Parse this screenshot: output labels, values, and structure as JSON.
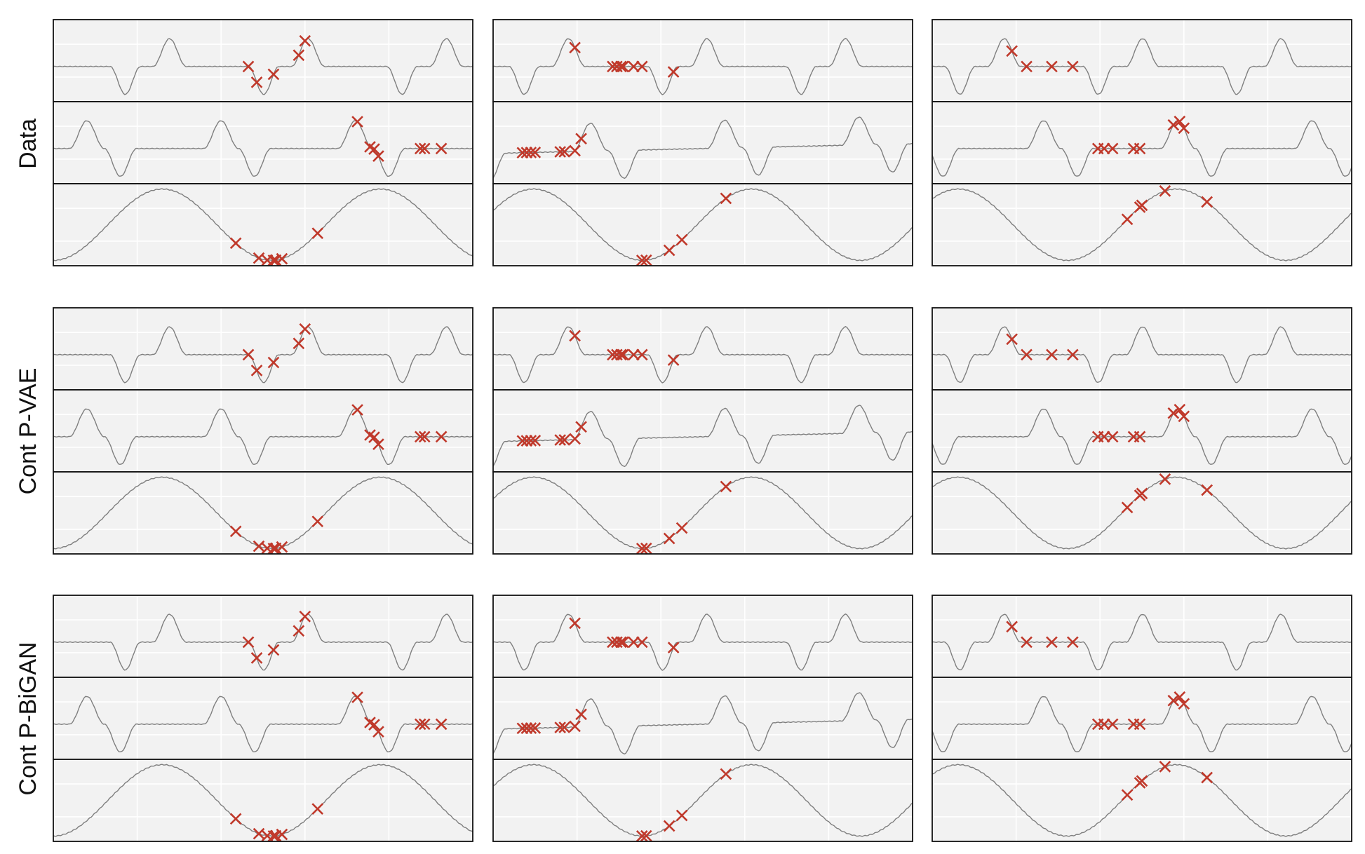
{
  "figure": {
    "row_labels": [
      "Data",
      "Cont P-VAE",
      "Cont P-BiGAN"
    ],
    "colors": {
      "panel_background": "#f2f2f2",
      "grid": "#ffffff",
      "frame": "#111111",
      "curve": "#7f7f7f",
      "observation_marker": "#c0392b"
    },
    "marker_style": "x"
  },
  "chart_data": [
    {
      "type": "line",
      "group": "Data",
      "column": 1,
      "xlim": [
        0,
        100
      ],
      "grid": true,
      "xticks": [
        20,
        40,
        60,
        80
      ],
      "yticks": [
        0.3,
        0.7
      ],
      "series": [
        {
          "track": 1,
          "family": "sharp",
          "phase": 0.34,
          "trend": 0,
          "ylim": [
            -1.2,
            1.6
          ],
          "observed_x": [
            46.5,
            48.5,
            52.5,
            58.5,
            60.0
          ]
        },
        {
          "track": 2,
          "family": "mid",
          "phase": 0.75,
          "trend": 0,
          "ylim": [
            -1.2,
            1.6
          ],
          "observed_x": [
            72.5,
            75.5,
            76.5,
            77.5,
            87.5,
            88.5,
            92.5
          ]
        },
        {
          "track": 3,
          "family": "slow",
          "phase": 0.5,
          "trend": 0,
          "ylim": [
            -1.15,
            1.15
          ],
          "observed_x": [
            43.5,
            49.0,
            51.0,
            52.5,
            53.0,
            54.5,
            63.0
          ]
        }
      ]
    },
    {
      "type": "line",
      "group": "Data",
      "column": 2,
      "xlim": [
        0,
        100
      ],
      "grid": true,
      "xticks": [
        20,
        40,
        60,
        80
      ],
      "yticks": [
        0.3,
        0.7
      ],
      "series": [
        {
          "track": 1,
          "family": "sharp",
          "phase": 0.045,
          "trend": 0,
          "ylim": [
            -1.2,
            1.6
          ],
          "observed_x": [
            19.5,
            28.5,
            29.5,
            30.5,
            31.0,
            33.5,
            35.5,
            43.0
          ]
        },
        {
          "track": 2,
          "family": "mid",
          "phase": 0.225,
          "trend": 0.55,
          "ylim": [
            -1.2,
            1.6
          ],
          "observed_x": [
            7.0,
            8.0,
            9.0,
            10.0,
            16.0,
            17.0,
            19.5,
            21.0
          ]
        },
        {
          "track": 3,
          "family": "slow",
          "phase": 0.185,
          "trend": 0,
          "ylim": [
            -1.15,
            1.15
          ],
          "observed_x": [
            35.5,
            36.5,
            42.0,
            45.0,
            55.5
          ]
        }
      ]
    },
    {
      "type": "line",
      "group": "Data",
      "column": 3,
      "xlim": [
        0,
        100
      ],
      "grid": true,
      "xticks": [
        20,
        40,
        60,
        80
      ],
      "yticks": [
        0.3,
        0.7
      ],
      "series": [
        {
          "track": 1,
          "family": "sharp",
          "phase": 0.02,
          "trend": 0,
          "ylim": [
            -1.2,
            1.6
          ],
          "observed_x": [
            19.0,
            22.5,
            28.5,
            33.5
          ]
        },
        {
          "track": 2,
          "family": "mid",
          "phase": 0.33,
          "trend": 0,
          "ylim": [
            -1.2,
            1.6
          ],
          "observed_x": [
            39.5,
            41.0,
            43.0,
            48.0,
            49.5,
            57.5,
            59.0,
            60.0
          ]
        },
        {
          "track": 3,
          "family": "slow",
          "phase": 0.12,
          "trend": 0,
          "ylim": [
            -1.15,
            1.15
          ],
          "observed_x": [
            46.5,
            49.5,
            50.0,
            55.5,
            65.5
          ]
        }
      ]
    },
    {
      "type": "line",
      "group": "Cont P-VAE",
      "column": 1,
      "xlim": [
        0,
        100
      ],
      "grid": true,
      "xticks": [
        20,
        40,
        60,
        80
      ],
      "yticks": [
        0.3,
        0.7
      ],
      "series": [
        {
          "track": 1,
          "family": "sharp",
          "phase": 0.34,
          "trend": 0,
          "ylim": [
            -1.2,
            1.6
          ],
          "observed_x": [
            46.5,
            48.5,
            52.5,
            58.5,
            60.0
          ]
        },
        {
          "track": 2,
          "family": "mid",
          "phase": 0.75,
          "trend": 0,
          "ylim": [
            -1.2,
            1.6
          ],
          "observed_x": [
            72.5,
            75.5,
            76.5,
            77.5,
            87.5,
            88.5,
            92.5
          ]
        },
        {
          "track": 3,
          "family": "slow",
          "phase": 0.5,
          "trend": 0,
          "ylim": [
            -1.15,
            1.15
          ],
          "observed_x": [
            43.5,
            49.0,
            51.0,
            52.5,
            53.0,
            54.5,
            63.0
          ]
        }
      ]
    },
    {
      "type": "line",
      "group": "Cont P-VAE",
      "column": 2,
      "xlim": [
        0,
        100
      ],
      "grid": true,
      "xticks": [
        20,
        40,
        60,
        80
      ],
      "yticks": [
        0.3,
        0.7
      ],
      "series": [
        {
          "track": 1,
          "family": "sharp",
          "phase": 0.045,
          "trend": 0,
          "ylim": [
            -1.2,
            1.6
          ],
          "observed_x": [
            19.5,
            28.5,
            29.5,
            30.5,
            31.0,
            33.5,
            35.5,
            43.0
          ]
        },
        {
          "track": 2,
          "family": "mid",
          "phase": 0.225,
          "trend": 0.55,
          "ylim": [
            -1.2,
            1.6
          ],
          "observed_x": [
            7.0,
            8.0,
            9.0,
            10.0,
            16.0,
            17.0,
            19.5,
            21.0
          ]
        },
        {
          "track": 3,
          "family": "slow",
          "phase": 0.185,
          "trend": 0,
          "ylim": [
            -1.15,
            1.15
          ],
          "observed_x": [
            35.5,
            36.5,
            42.0,
            45.0,
            55.5
          ]
        }
      ]
    },
    {
      "type": "line",
      "group": "Cont P-VAE",
      "column": 3,
      "xlim": [
        0,
        100
      ],
      "grid": true,
      "xticks": [
        20,
        40,
        60,
        80
      ],
      "yticks": [
        0.3,
        0.7
      ],
      "series": [
        {
          "track": 1,
          "family": "sharp",
          "phase": 0.02,
          "trend": 0,
          "ylim": [
            -1.2,
            1.6
          ],
          "observed_x": [
            19.0,
            22.5,
            28.5,
            33.5
          ]
        },
        {
          "track": 2,
          "family": "mid",
          "phase": 0.33,
          "trend": 0,
          "ylim": [
            -1.2,
            1.6
          ],
          "observed_x": [
            39.5,
            41.0,
            43.0,
            48.0,
            49.5,
            57.5,
            59.0,
            60.0
          ]
        },
        {
          "track": 3,
          "family": "slow",
          "phase": 0.12,
          "trend": 0,
          "ylim": [
            -1.15,
            1.15
          ],
          "observed_x": [
            46.5,
            49.5,
            50.0,
            55.5,
            65.5
          ]
        }
      ]
    },
    {
      "type": "line",
      "group": "Cont P-BiGAN",
      "column": 1,
      "xlim": [
        0,
        100
      ],
      "grid": true,
      "xticks": [
        20,
        40,
        60,
        80
      ],
      "yticks": [
        0.3,
        0.7
      ],
      "series": [
        {
          "track": 1,
          "family": "sharp",
          "phase": 0.34,
          "trend": 0,
          "ylim": [
            -1.2,
            1.6
          ],
          "observed_x": [
            46.5,
            48.5,
            52.5,
            58.5,
            60.0
          ]
        },
        {
          "track": 2,
          "family": "mid",
          "phase": 0.75,
          "trend": 0,
          "ylim": [
            -1.2,
            1.6
          ],
          "observed_x": [
            72.5,
            75.5,
            76.5,
            77.5,
            87.5,
            88.5,
            92.5
          ]
        },
        {
          "track": 3,
          "family": "slow",
          "phase": 0.5,
          "trend": 0,
          "ylim": [
            -1.15,
            1.15
          ],
          "observed_x": [
            43.5,
            49.0,
            51.0,
            52.5,
            53.0,
            54.5,
            63.0
          ]
        }
      ]
    },
    {
      "type": "line",
      "group": "Cont P-BiGAN",
      "column": 2,
      "xlim": [
        0,
        100
      ],
      "grid": true,
      "xticks": [
        20,
        40,
        60,
        80
      ],
      "yticks": [
        0.3,
        0.7
      ],
      "series": [
        {
          "track": 1,
          "family": "sharp",
          "phase": 0.045,
          "trend": 0,
          "ylim": [
            -1.2,
            1.6
          ],
          "observed_x": [
            19.5,
            28.5,
            29.5,
            30.5,
            31.0,
            33.5,
            35.5,
            43.0
          ]
        },
        {
          "track": 2,
          "family": "mid",
          "phase": 0.225,
          "trend": 0.55,
          "ylim": [
            -1.2,
            1.6
          ],
          "observed_x": [
            7.0,
            8.0,
            9.0,
            10.0,
            16.0,
            17.0,
            19.5,
            21.0
          ]
        },
        {
          "track": 3,
          "family": "slow",
          "phase": 0.185,
          "trend": 0,
          "ylim": [
            -1.15,
            1.15
          ],
          "observed_x": [
            35.5,
            36.5,
            42.0,
            45.0,
            55.5
          ]
        }
      ]
    },
    {
      "type": "line",
      "group": "Cont P-BiGAN",
      "column": 3,
      "xlim": [
        0,
        100
      ],
      "grid": true,
      "xticks": [
        20,
        40,
        60,
        80
      ],
      "yticks": [
        0.3,
        0.7
      ],
      "series": [
        {
          "track": 1,
          "family": "sharp",
          "phase": 0.02,
          "trend": 0,
          "ylim": [
            -1.2,
            1.6
          ],
          "observed_x": [
            19.0,
            22.5,
            28.5,
            33.5
          ]
        },
        {
          "track": 2,
          "family": "mid",
          "phase": 0.33,
          "trend": 0,
          "ylim": [
            -1.2,
            1.6
          ],
          "observed_x": [
            39.5,
            41.0,
            43.0,
            48.0,
            49.5,
            57.5,
            59.0,
            60.0
          ]
        },
        {
          "track": 3,
          "family": "slow",
          "phase": 0.12,
          "trend": 0,
          "ylim": [
            -1.15,
            1.15
          ],
          "observed_x": [
            46.5,
            49.5,
            50.0,
            55.5,
            65.5
          ]
        }
      ]
    }
  ]
}
